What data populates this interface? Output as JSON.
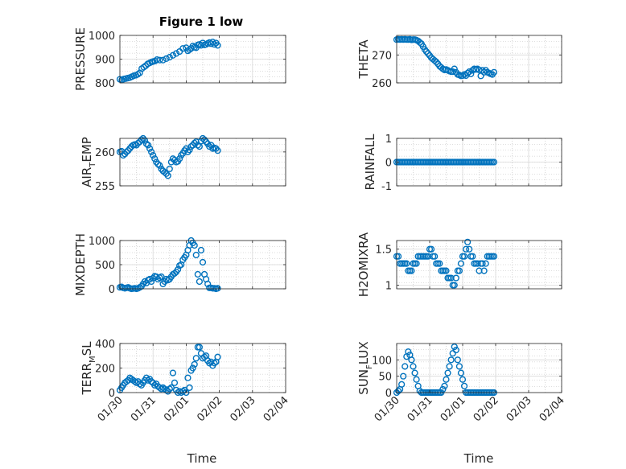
{
  "figure": {
    "title": "Figure 1 low",
    "marker_color": "#0072BD",
    "xlabel": "Time",
    "x_ticks": [
      "01/30",
      "01/31",
      "02/01",
      "02/02",
      "02/03",
      "02/04"
    ]
  },
  "chart_data": [
    {
      "type": "scatter",
      "ylabel": "PRESSURE",
      "ylim": [
        800,
        1000
      ],
      "yticks": [
        "800",
        "900",
        "1000"
      ],
      "grid": true,
      "x": [
        0.0,
        0.06,
        0.12,
        0.18,
        0.24,
        0.3,
        0.36,
        0.42,
        0.48,
        0.54,
        0.6,
        0.66,
        0.72,
        0.78,
        0.84,
        0.9,
        0.96,
        1.0,
        1.06,
        1.12,
        1.2,
        1.3,
        1.4,
        1.5,
        1.6,
        1.7,
        1.8,
        1.9,
        2.0,
        2.05,
        2.1,
        2.15,
        2.2,
        2.25,
        2.3,
        2.35,
        2.4,
        2.45,
        2.5,
        2.55,
        2.6,
        2.65,
        2.7,
        2.75,
        2.8,
        2.85,
        2.9,
        2.95
      ],
      "y": [
        815,
        812,
        816,
        818,
        820,
        822,
        826,
        830,
        832,
        836,
        842,
        860,
        866,
        872,
        880,
        884,
        888,
        890,
        892,
        898,
        896,
        896,
        902,
        908,
        916,
        924,
        932,
        945,
        948,
        935,
        940,
        945,
        955,
        950,
        948,
        960,
        962,
        958,
        968,
        960,
        962,
        966,
        970,
        965,
        972,
        962,
        968,
        958
      ]
    },
    {
      "type": "scatter",
      "ylabel": "THETA",
      "ylim": [
        260,
        277
      ],
      "yticks": [
        "260",
        "270"
      ],
      "grid": true,
      "x": [
        0.0,
        0.05,
        0.1,
        0.15,
        0.2,
        0.25,
        0.3,
        0.35,
        0.4,
        0.45,
        0.5,
        0.55,
        0.6,
        0.65,
        0.7,
        0.75,
        0.8,
        0.85,
        0.9,
        0.95,
        1.0,
        1.05,
        1.1,
        1.15,
        1.2,
        1.25,
        1.3,
        1.35,
        1.4,
        1.45,
        1.5,
        1.55,
        1.6,
        1.65,
        1.7,
        1.75,
        1.8,
        1.85,
        1.9,
        1.95,
        2.0,
        2.05,
        2.1,
        2.15,
        2.2,
        2.25,
        2.3,
        2.35,
        2.4,
        2.45,
        2.5,
        2.55,
        2.6,
        2.65,
        2.7,
        2.75,
        2.8,
        2.85,
        2.9,
        2.95
      ],
      "y": [
        275.5,
        275.6,
        275.5,
        275.6,
        275.5,
        275.6,
        275.5,
        275.5,
        275.6,
        275.4,
        275.5,
        275.5,
        275.3,
        275.0,
        274.5,
        274.0,
        273.0,
        272.0,
        271.2,
        270.5,
        269.8,
        269.0,
        268.5,
        268.0,
        267.5,
        266.8,
        266.0,
        265.5,
        265.0,
        264.6,
        264.8,
        264.5,
        264.2,
        264.0,
        264.0,
        265.0,
        263.8,
        263.0,
        262.8,
        262.5,
        262.6,
        263.0,
        262.6,
        263.5,
        264.0,
        263.2,
        264.5,
        265.0,
        264.8,
        265.0,
        264.6,
        262.5,
        264.5,
        263.8,
        264.5,
        263.8,
        263.5,
        263.2,
        263.0,
        263.8
      ]
    },
    {
      "type": "scatter",
      "ylabel": "AIR_TEMP",
      "ylim": [
        255,
        262
      ],
      "yticks": [
        "255",
        "260"
      ],
      "grid": true,
      "x": [
        0.0,
        0.05,
        0.1,
        0.15,
        0.2,
        0.25,
        0.3,
        0.35,
        0.4,
        0.45,
        0.5,
        0.55,
        0.6,
        0.65,
        0.7,
        0.75,
        0.8,
        0.85,
        0.9,
        0.95,
        1.0,
        1.05,
        1.1,
        1.15,
        1.2,
        1.25,
        1.3,
        1.35,
        1.4,
        1.45,
        1.5,
        1.55,
        1.6,
        1.65,
        1.7,
        1.75,
        1.8,
        1.85,
        1.9,
        1.95,
        2.0,
        2.05,
        2.1,
        2.15,
        2.2,
        2.25,
        2.3,
        2.35,
        2.4,
        2.45,
        2.5,
        2.55,
        2.6,
        2.65,
        2.7,
        2.75,
        2.8,
        2.85,
        2.9,
        2.95
      ],
      "y": [
        260.0,
        260.1,
        259.5,
        259.7,
        260.0,
        260.2,
        260.5,
        260.8,
        261.0,
        261.1,
        261.0,
        261.3,
        261.5,
        261.8,
        262.0,
        261.7,
        261.2,
        261.0,
        260.5,
        260.0,
        259.5,
        259.0,
        258.5,
        258.2,
        258.0,
        257.5,
        257.2,
        257.0,
        256.8,
        256.5,
        257.5,
        258.5,
        259.0,
        258.8,
        258.5,
        258.6,
        259.0,
        259.5,
        259.8,
        260.2,
        260.5,
        260.0,
        260.3,
        260.8,
        261.0,
        261.3,
        261.5,
        261.0,
        260.8,
        261.6,
        262.0,
        261.8,
        261.5,
        261.2,
        260.8,
        261.0,
        260.5,
        260.6,
        260.5,
        260.2
      ]
    },
    {
      "type": "scatter",
      "ylabel": "RAINFALL",
      "ylim": [
        -1,
        1
      ],
      "yticks": [
        "-1",
        "0",
        "1"
      ],
      "grid": true,
      "x": [
        0.0,
        0.05,
        0.1,
        0.15,
        0.2,
        0.25,
        0.3,
        0.35,
        0.4,
        0.45,
        0.5,
        0.55,
        0.6,
        0.65,
        0.7,
        0.75,
        0.8,
        0.85,
        0.9,
        0.95,
        1.0,
        1.05,
        1.1,
        1.15,
        1.2,
        1.25,
        1.3,
        1.35,
        1.4,
        1.45,
        1.5,
        1.55,
        1.6,
        1.65,
        1.7,
        1.75,
        1.8,
        1.85,
        1.9,
        1.95,
        2.0,
        2.05,
        2.1,
        2.15,
        2.2,
        2.25,
        2.3,
        2.35,
        2.4,
        2.45,
        2.5,
        2.55,
        2.6,
        2.65,
        2.7,
        2.75,
        2.8,
        2.85,
        2.9,
        2.95
      ],
      "y": [
        0,
        0,
        0,
        0,
        0,
        0,
        0,
        0,
        0,
        0,
        0,
        0,
        0,
        0,
        0,
        0,
        0,
        0,
        0,
        0,
        0,
        0,
        0,
        0,
        0,
        0,
        0,
        0,
        0,
        0,
        0,
        0,
        0,
        0,
        0,
        0,
        0,
        0,
        0,
        0,
        0,
        0,
        0,
        0,
        0,
        0,
        0,
        0,
        0,
        0,
        0,
        0,
        0,
        0,
        0,
        0,
        0,
        0,
        0,
        0
      ]
    },
    {
      "type": "scatter",
      "ylabel": "MIXDEPTH",
      "ylim": [
        0,
        1000
      ],
      "yticks": [
        "0",
        "500",
        "1000"
      ],
      "grid": true,
      "x": [
        0.0,
        0.05,
        0.1,
        0.15,
        0.2,
        0.25,
        0.3,
        0.35,
        0.4,
        0.45,
        0.5,
        0.55,
        0.6,
        0.65,
        0.7,
        0.75,
        0.8,
        0.85,
        0.9,
        0.95,
        1.0,
        1.05,
        1.1,
        1.15,
        1.2,
        1.25,
        1.3,
        1.35,
        1.4,
        1.45,
        1.5,
        1.55,
        1.6,
        1.65,
        1.7,
        1.75,
        1.8,
        1.85,
        1.9,
        1.95,
        2.0,
        2.05,
        2.1,
        2.15,
        2.2,
        2.25,
        2.3,
        2.35,
        2.4,
        2.45,
        2.5,
        2.55,
        2.6,
        2.65,
        2.7,
        2.75,
        2.8,
        2.85,
        2.9,
        2.95
      ],
      "y": [
        30,
        40,
        20,
        10,
        20,
        30,
        10,
        0,
        5,
        10,
        0,
        10,
        30,
        50,
        100,
        150,
        120,
        180,
        200,
        150,
        220,
        260,
        250,
        200,
        230,
        250,
        100,
        150,
        200,
        180,
        200,
        250,
        300,
        320,
        350,
        400,
        480,
        500,
        600,
        650,
        700,
        800,
        900,
        1000,
        950,
        900,
        700,
        300,
        150,
        800,
        550,
        300,
        200,
        100,
        20,
        20,
        10,
        10,
        0,
        10
      ]
    },
    {
      "type": "scatter",
      "ylabel": "H2OMIXRA",
      "ylim": [
        0.95,
        1.62
      ],
      "yticks": [
        "1",
        "1.5"
      ],
      "grid": true,
      "x": [
        0.0,
        0.05,
        0.1,
        0.15,
        0.2,
        0.25,
        0.3,
        0.35,
        0.4,
        0.45,
        0.5,
        0.55,
        0.6,
        0.65,
        0.7,
        0.75,
        0.8,
        0.85,
        0.9,
        0.95,
        1.0,
        1.05,
        1.1,
        1.15,
        1.2,
        1.25,
        1.3,
        1.35,
        1.4,
        1.45,
        1.5,
        1.55,
        1.6,
        1.65,
        1.7,
        1.75,
        1.8,
        1.85,
        1.9,
        1.95,
        2.0,
        2.05,
        2.1,
        2.15,
        2.2,
        2.25,
        2.3,
        2.35,
        2.4,
        2.45,
        2.5,
        2.55,
        2.6,
        2.65,
        2.7,
        2.75,
        2.8,
        2.85,
        2.9,
        2.95
      ],
      "y": [
        1.4,
        1.4,
        1.3,
        1.3,
        1.3,
        1.3,
        1.3,
        1.2,
        1.2,
        1.2,
        1.3,
        1.3,
        1.3,
        1.4,
        1.4,
        1.4,
        1.4,
        1.4,
        1.4,
        1.4,
        1.5,
        1.5,
        1.4,
        1.4,
        1.3,
        1.3,
        1.3,
        1.2,
        1.2,
        1.2,
        1.2,
        1.1,
        1.1,
        1.1,
        1.0,
        1.0,
        1.1,
        1.2,
        1.2,
        1.3,
        1.4,
        1.4,
        1.5,
        1.6,
        1.5,
        1.4,
        1.4,
        1.3,
        1.3,
        1.3,
        1.2,
        1.3,
        1.3,
        1.2,
        1.3,
        1.4,
        1.4,
        1.4,
        1.4,
        1.4
      ]
    },
    {
      "type": "scatter",
      "ylabel": "TERR_MSL",
      "ylim": [
        0,
        400
      ],
      "yticks": [
        "0",
        "200",
        "400"
      ],
      "grid": true,
      "x": [
        0.0,
        0.05,
        0.1,
        0.15,
        0.2,
        0.25,
        0.3,
        0.35,
        0.4,
        0.45,
        0.5,
        0.55,
        0.6,
        0.65,
        0.7,
        0.75,
        0.8,
        0.85,
        0.9,
        0.95,
        1.0,
        1.05,
        1.1,
        1.15,
        1.2,
        1.25,
        1.3,
        1.35,
        1.4,
        1.45,
        1.5,
        1.55,
        1.6,
        1.65,
        1.7,
        1.75,
        1.8,
        1.85,
        1.9,
        1.95,
        2.0,
        2.05,
        2.1,
        2.15,
        2.2,
        2.25,
        2.3,
        2.35,
        2.4,
        2.45,
        2.5,
        2.55,
        2.6,
        2.65,
        2.7,
        2.75,
        2.8,
        2.85,
        2.9,
        2.95
      ],
      "y": [
        20,
        40,
        60,
        80,
        90,
        100,
        120,
        110,
        100,
        90,
        80,
        90,
        70,
        60,
        80,
        100,
        120,
        100,
        110,
        90,
        80,
        60,
        70,
        50,
        40,
        30,
        40,
        30,
        20,
        10,
        30,
        40,
        160,
        80,
        20,
        0,
        10,
        0,
        10,
        20,
        0,
        120,
        40,
        180,
        200,
        230,
        280,
        370,
        370,
        320,
        280,
        290,
        300,
        260,
        240,
        250,
        220,
        240,
        250,
        290
      ]
    },
    {
      "type": "scatter",
      "ylabel": "SUN_FLUX",
      "ylim": [
        0,
        150
      ],
      "yticks": [
        "0",
        "50",
        "100"
      ],
      "grid": true,
      "x": [
        0.0,
        0.05,
        0.1,
        0.15,
        0.2,
        0.25,
        0.3,
        0.35,
        0.4,
        0.45,
        0.5,
        0.55,
        0.6,
        0.65,
        0.7,
        0.75,
        0.8,
        0.85,
        0.9,
        0.95,
        1.0,
        1.05,
        1.1,
        1.15,
        1.2,
        1.25,
        1.3,
        1.35,
        1.4,
        1.45,
        1.5,
        1.55,
        1.6,
        1.65,
        1.7,
        1.75,
        1.8,
        1.85,
        1.9,
        1.95,
        2.0,
        2.05,
        2.1,
        2.15,
        2.2,
        2.25,
        2.3,
        2.35,
        2.4,
        2.45,
        2.5,
        2.55,
        2.6,
        2.65,
        2.7,
        2.75,
        2.8,
        2.85,
        2.9,
        2.95
      ],
      "y": [
        0,
        5,
        10,
        25,
        50,
        80,
        110,
        125,
        115,
        100,
        80,
        60,
        40,
        20,
        5,
        0,
        0,
        0,
        0,
        0,
        0,
        0,
        0,
        0,
        0,
        0,
        0,
        0,
        10,
        20,
        40,
        60,
        80,
        100,
        120,
        140,
        130,
        100,
        80,
        60,
        40,
        20,
        0,
        0,
        0,
        0,
        0,
        0,
        0,
        0,
        0,
        0,
        0,
        0,
        0,
        0,
        0,
        0,
        0,
        0
      ]
    }
  ]
}
